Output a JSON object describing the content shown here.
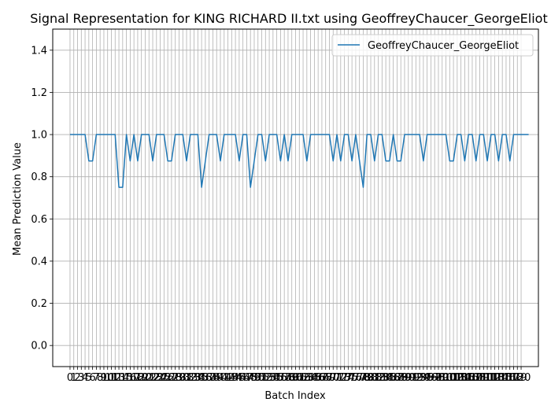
{
  "chart_data": {
    "type": "line",
    "title": "Signal Representation for KING RICHARD II.txt using GeoffreyChaucer_GeorgeEliot",
    "xlabel": "Batch Index",
    "ylabel": "Mean Prediction Value",
    "xlim": [
      -4.6,
      124.6
    ],
    "ylim": [
      -0.1,
      1.5
    ],
    "yticks": [
      0.0,
      0.2,
      0.4,
      0.6,
      0.8,
      1.0,
      1.2,
      1.4
    ],
    "ytick_labels": [
      "0.0",
      "0.2",
      "0.4",
      "0.6",
      "0.8",
      "1.0",
      "1.2",
      "1.4"
    ],
    "x_tick_count": 121,
    "grid": true,
    "legend_position": "top-right",
    "line_color": "#1f77b4",
    "series": [
      {
        "name": "GeoffreyChaucer_GeorgeEliot",
        "values": [
          1,
          1,
          1,
          1,
          1,
          0.875,
          0.875,
          1,
          1,
          1,
          1,
          1,
          1,
          0.75,
          0.75,
          1,
          0.875,
          1,
          0.875,
          1,
          1,
          1,
          0.875,
          1,
          1,
          1,
          0.875,
          0.875,
          1,
          1,
          1,
          0.875,
          1,
          1,
          1,
          0.75,
          0.875,
          1,
          1,
          1,
          0.875,
          1,
          1,
          1,
          1,
          0.875,
          1,
          1,
          0.75,
          0.875,
          1,
          1,
          0.875,
          1,
          1,
          1,
          0.875,
          1,
          0.875,
          1,
          1,
          1,
          1,
          0.875,
          1,
          1,
          1,
          1,
          1,
          1,
          0.875,
          1,
          0.875,
          1,
          1,
          0.875,
          1,
          0.875,
          0.75,
          1,
          1,
          0.875,
          1,
          1,
          0.875,
          0.875,
          1,
          0.875,
          0.875,
          1,
          1,
          1,
          1,
          1,
          0.875,
          1,
          1,
          1,
          1,
          1,
          1,
          0.875,
          0.875,
          1,
          1,
          0.875,
          1,
          1,
          0.875,
          1,
          1,
          0.875,
          1,
          1,
          0.875,
          1,
          1,
          0.875,
          1,
          1,
          1,
          1,
          1
        ]
      }
    ]
  }
}
